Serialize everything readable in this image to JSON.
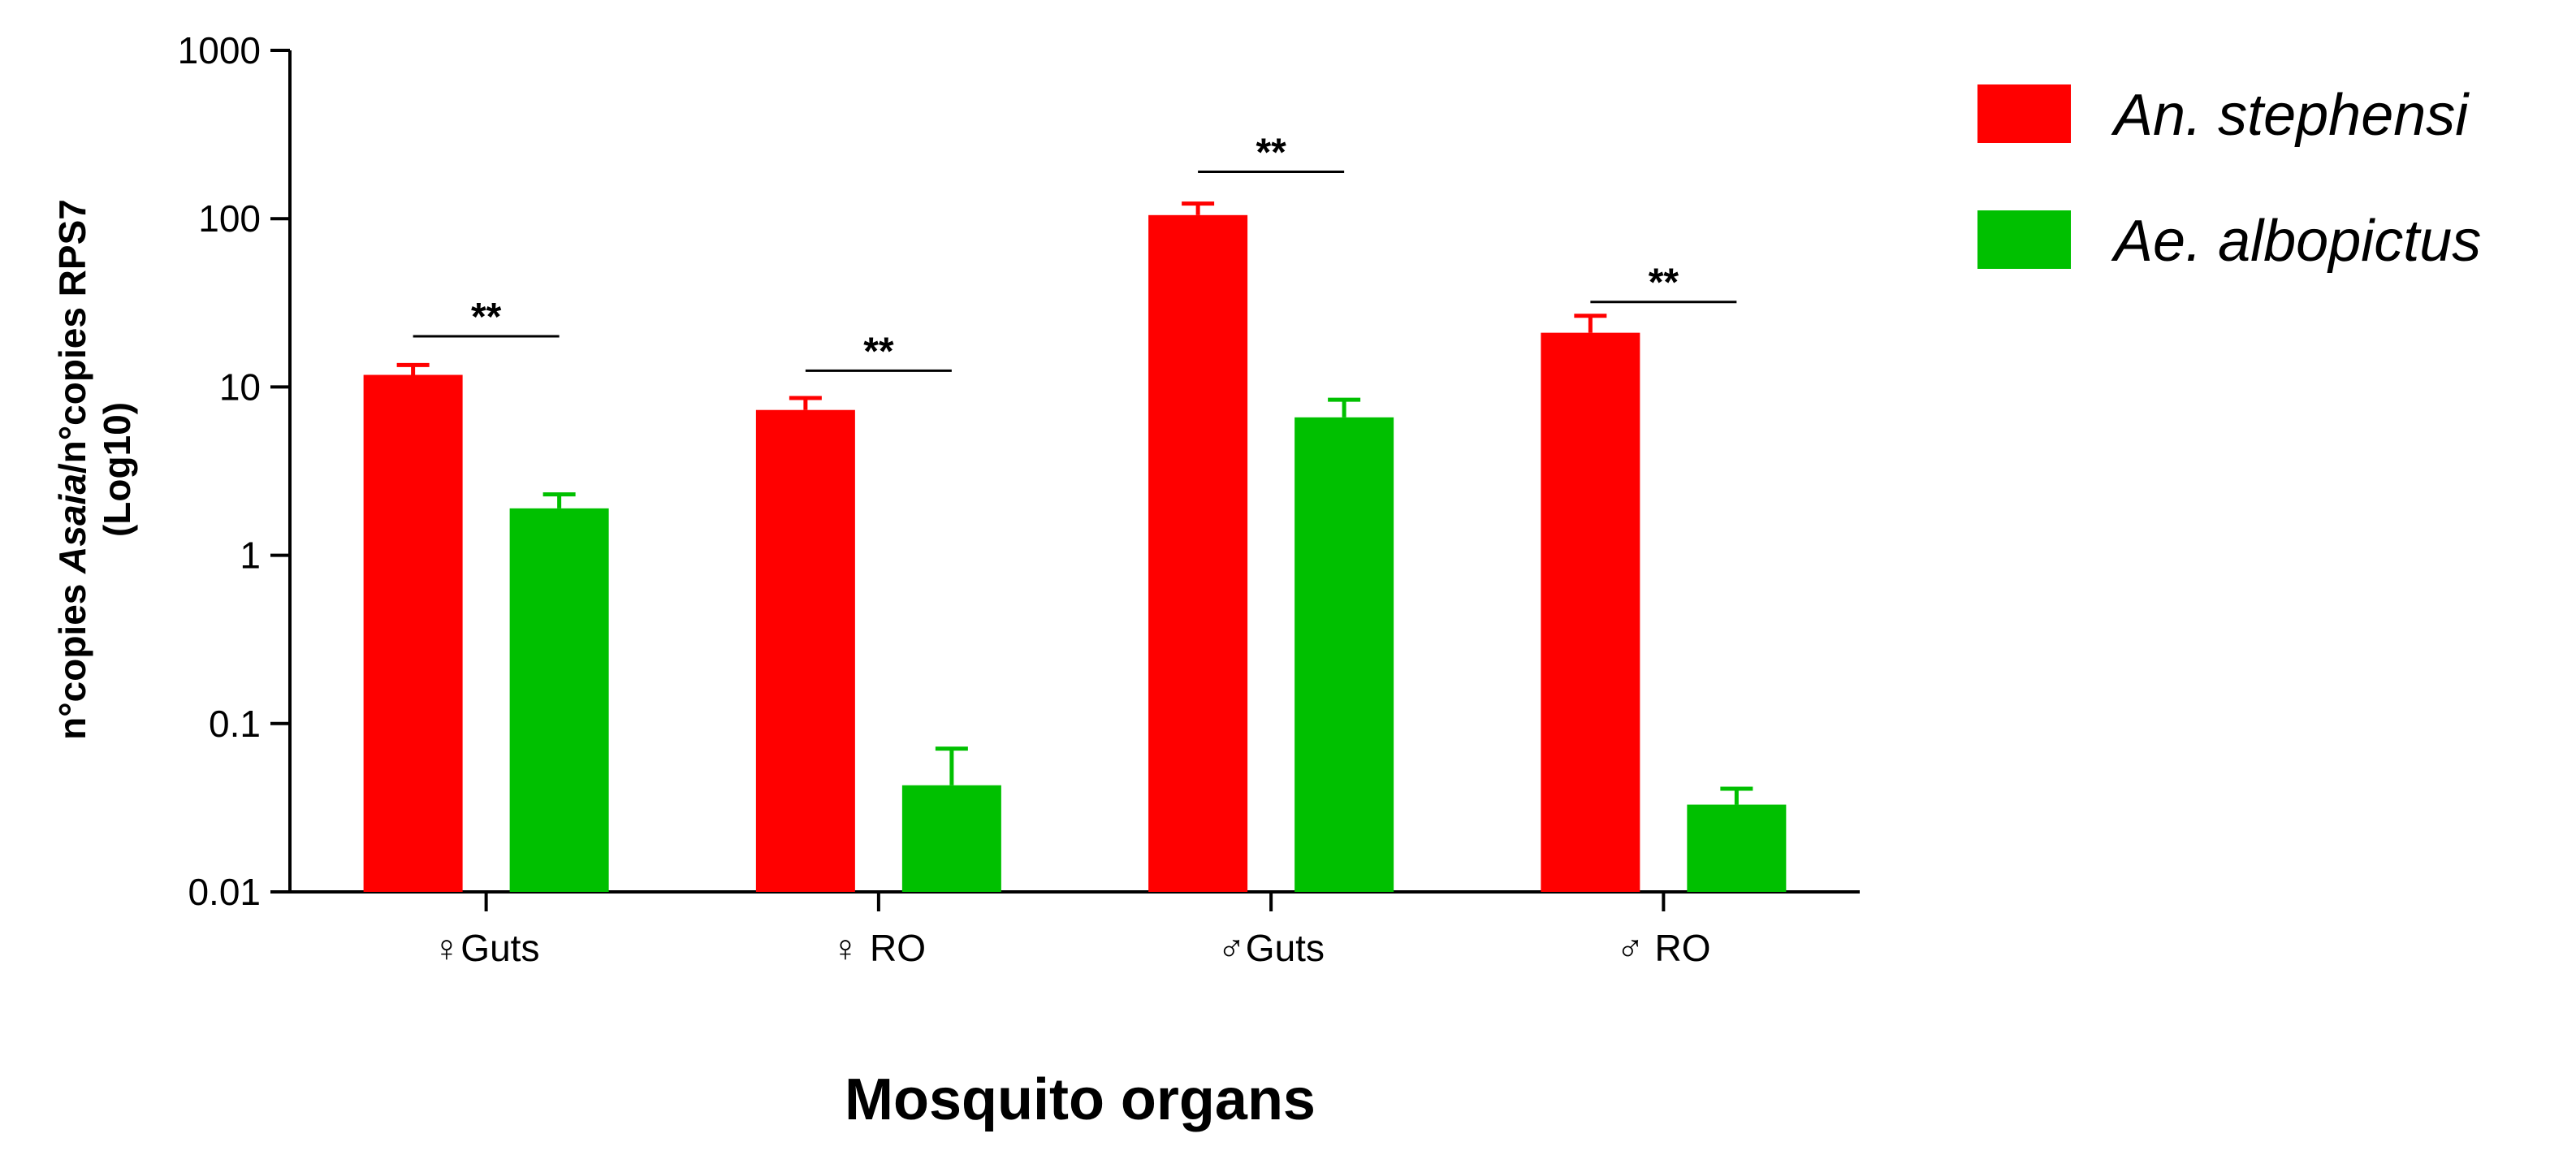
{
  "chart_data": {
    "type": "bar",
    "categories": [
      "♀Guts",
      "♀ RO",
      "♂Guts",
      "♂ RO"
    ],
    "series": [
      {
        "name": "An. stephensi",
        "color": "#ff0000",
        "values": [
          11.8,
          7.3,
          105,
          21
        ],
        "error": [
          13.5,
          8.6,
          123,
          26.5
        ]
      },
      {
        "name": "Ae. albopictus",
        "color": "#00c000",
        "values": [
          1.9,
          0.043,
          6.6,
          0.033
        ],
        "error": [
          2.3,
          0.071,
          8.4,
          0.041
        ]
      }
    ],
    "ylabel_parts": [
      "n°copies ",
      "Asaia",
      "/n°copies RPS7"
    ],
    "ylabel_line2": "(Log10)",
    "xlabel": "Mosquito organs",
    "yscale": "log",
    "ylim": [
      0.01,
      1000
    ],
    "yticks": [
      {
        "value": 0.01,
        "label": "0.01"
      },
      {
        "value": 0.1,
        "label": "0.1"
      },
      {
        "value": 1,
        "label": "1"
      },
      {
        "value": 10,
        "label": "10"
      },
      {
        "value": 100,
        "label": "100"
      },
      {
        "value": 1000,
        "label": "1000"
      }
    ],
    "significance": [
      {
        "category": 0,
        "label": "**",
        "y": 20
      },
      {
        "category": 1,
        "label": "**",
        "y": 12.5
      },
      {
        "category": 2,
        "label": "**",
        "y": 190
      },
      {
        "category": 3,
        "label": "**",
        "y": 32
      }
    ],
    "grid": false,
    "legend_position": "top-right"
  }
}
